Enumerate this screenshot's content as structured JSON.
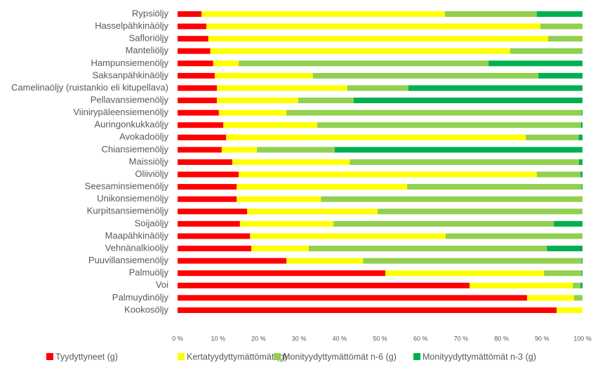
{
  "chart_data": {
    "type": "stacked-bar-horizontal",
    "categories": [
      "Rypsiöljy",
      "Hasselpähkinäöljy",
      "Safloriöljy",
      "Manteliöljy",
      "Hampunsiemenöljy",
      "Saksanpähkinäöljy",
      "Camelinaöljy (ruistankio eli kitupellava)",
      "Pellavansiemenöljy",
      "Viinirypäleensiemenöljy",
      "Auringonkukkaöljy",
      "Avokadoöljy",
      "Chiansiemenöljy",
      "Maissiöljy",
      "Oliiviöljy",
      "Seesaminsiemenöljy",
      "Unikonsiemenöljy",
      "Kurpitsansiemenöljy",
      "Soijaöljy",
      "Maapähkinäöljy",
      "Vehnänalkioöljy",
      "Puuvillansiemenöljy",
      "Palmuöljy",
      "Voi",
      "Palmuydinöljy",
      "Kookosöljy"
    ],
    "series": [
      {
        "name": "Tyydyttyneet (g)",
        "color": "#ff0000",
        "values": [
          5.9,
          7.1,
          7.6,
          8.1,
          8.8,
          9.2,
          9.7,
          9.7,
          10.2,
          11.3,
          12.0,
          10.9,
          13.5,
          15.1,
          14.6,
          14.6,
          17.2,
          15.4,
          17.9,
          18.2,
          26.9,
          51.3,
          72.1,
          86.3,
          93.6
        ]
      },
      {
        "name": "Kertatyydyttymättömät (g)",
        "color": "#ffff00",
        "values": [
          60.1,
          82.5,
          83.9,
          74.0,
          6.3,
          24.2,
          32.2,
          20.1,
          16.7,
          23.2,
          74.0,
          8.7,
          29.0,
          73.6,
          42.1,
          20.8,
          32.2,
          23.1,
          48.3,
          14.2,
          18.9,
          39.2,
          25.5,
          11.6,
          6.4
        ]
      },
      {
        "name": "Monityydyttymättömät n-6 (g)",
        "color": "#92d050",
        "values": [
          22.7,
          10.4,
          8.5,
          17.9,
          61.7,
          55.7,
          15.1,
          13.7,
          72.9,
          65.1,
          13.0,
          19.2,
          56.6,
          10.8,
          43.1,
          64.6,
          50.6,
          54.4,
          33.8,
          58.8,
          54.0,
          9.3,
          1.9,
          2.1,
          0
        ]
      },
      {
        "name": "Monityydyttymättömät n-3 (g)",
        "color": "#00b050",
        "values": [
          11.3,
          0,
          0,
          0,
          23.2,
          10.9,
          43.0,
          56.5,
          0.2,
          0.4,
          1.0,
          61.2,
          0.9,
          0.5,
          0.2,
          0,
          0,
          7.1,
          0,
          8.8,
          0.2,
          0.2,
          0.5,
          0,
          0
        ]
      }
    ],
    "xlim": [
      0,
      100
    ],
    "xticks": [
      {
        "value": 0,
        "label": "0 %"
      },
      {
        "value": 10,
        "label": "10 %"
      },
      {
        "value": 20,
        "label": "20 %"
      },
      {
        "value": 30,
        "label": "30 %"
      },
      {
        "value": 40,
        "label": "40 %"
      },
      {
        "value": 50,
        "label": "50 %"
      },
      {
        "value": 60,
        "label": "60 %"
      },
      {
        "value": 70,
        "label": "70 %"
      },
      {
        "value": 80,
        "label": "80 %"
      },
      {
        "value": 90,
        "label": "90 %"
      },
      {
        "value": 100,
        "label": "100 %"
      }
    ],
    "grid": false,
    "legend": "bottom"
  }
}
